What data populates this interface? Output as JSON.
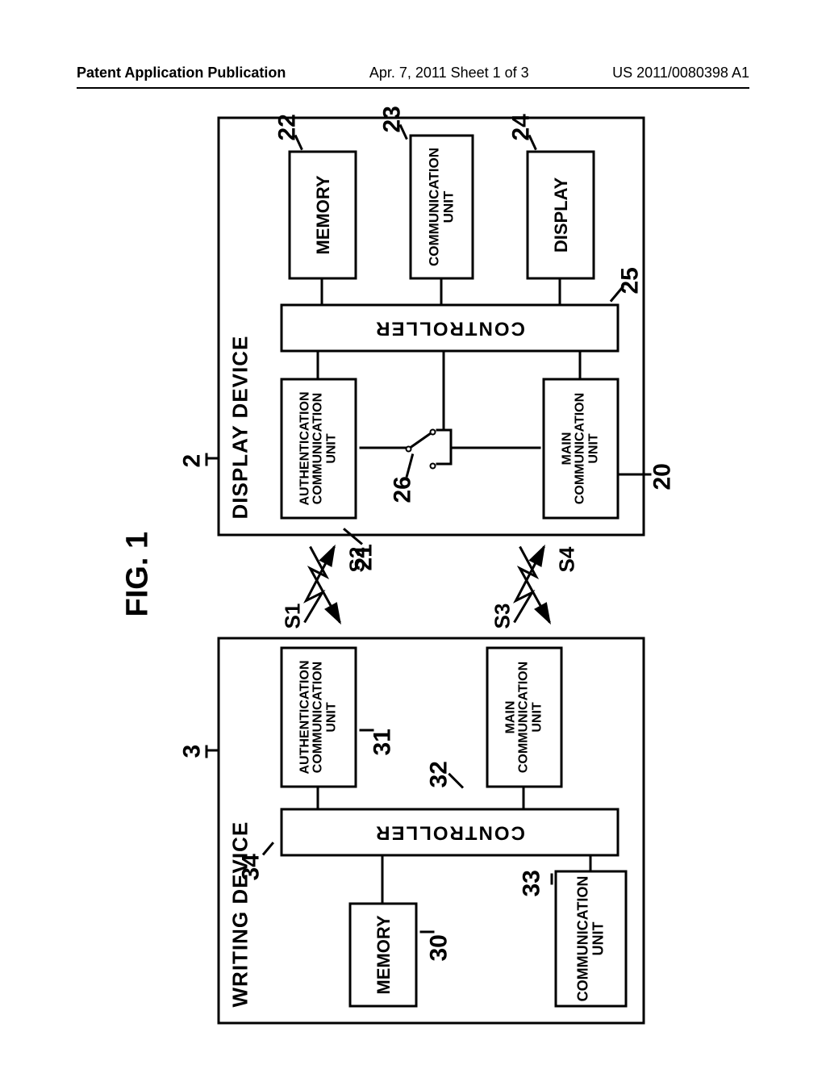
{
  "header": {
    "left": "Patent Application Publication",
    "center": "Apr. 7, 2011  Sheet 1 of 3",
    "right": "US 2011/0080398 A1"
  },
  "figure": {
    "label": "FIG. 1",
    "writing_device": {
      "title": "WRITING DEVICE",
      "ref": "3",
      "memory": {
        "label": "MEMORY",
        "ref": "30"
      },
      "comm_unit": {
        "label": "COMMUNICATION\nUNIT",
        "ref": "33"
      },
      "auth_comm": {
        "label": "AUTHENTICATION\nCOMMUNICATION\nUNIT",
        "ref": "31"
      },
      "main_comm": {
        "label": "MAIN\nCOMMUNICATION\nUNIT",
        "ref": "32"
      },
      "controller": {
        "label": "CONTROLLER",
        "ref": "34"
      }
    },
    "display_device": {
      "title": "DISPLAY DEVICE",
      "ref": "2",
      "auth_comm": {
        "label": "AUTHENTICATION\nCOMMUNICATION\nUNIT",
        "ref": "21"
      },
      "main_comm": {
        "label": "MAIN\nCOMMUNICATION\nUNIT",
        "ref": "20"
      },
      "switch": {
        "ref": "26"
      },
      "controller": {
        "label": "CONTROLLER",
        "ref": "25"
      },
      "memory": {
        "label": "MEMORY",
        "ref": "22"
      },
      "sub_comm": {
        "label": "COMMUNICATION\nUNIT",
        "ref": "23"
      },
      "display": {
        "label": "DISPLAY",
        "ref": "24"
      }
    },
    "signals": {
      "s1": "S1",
      "s2": "S2",
      "s3": "S3",
      "s4": "S4"
    }
  }
}
